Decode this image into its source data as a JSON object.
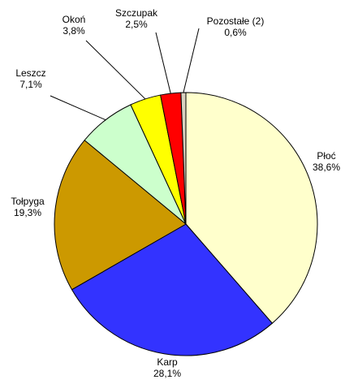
{
  "chart_data": {
    "type": "pie",
    "categories": [
      "Płoć",
      "Karp",
      "Tołpyga",
      "Leszcz",
      "Okoń",
      "Szczupak",
      "Pozostałe (2)"
    ],
    "values": [
      38.6,
      28.1,
      19.3,
      7.1,
      3.8,
      2.5,
      0.6
    ],
    "value_labels": [
      "38,6%",
      "28,1%",
      "19,3%",
      "7,1%",
      "3,8%",
      "2,5%",
      "0,6%"
    ],
    "colors": [
      "#ffffcc",
      "#3333ff",
      "#cc9900",
      "#ccffcc",
      "#ffff00",
      "#ff0000",
      "#d9d2c0"
    ]
  }
}
